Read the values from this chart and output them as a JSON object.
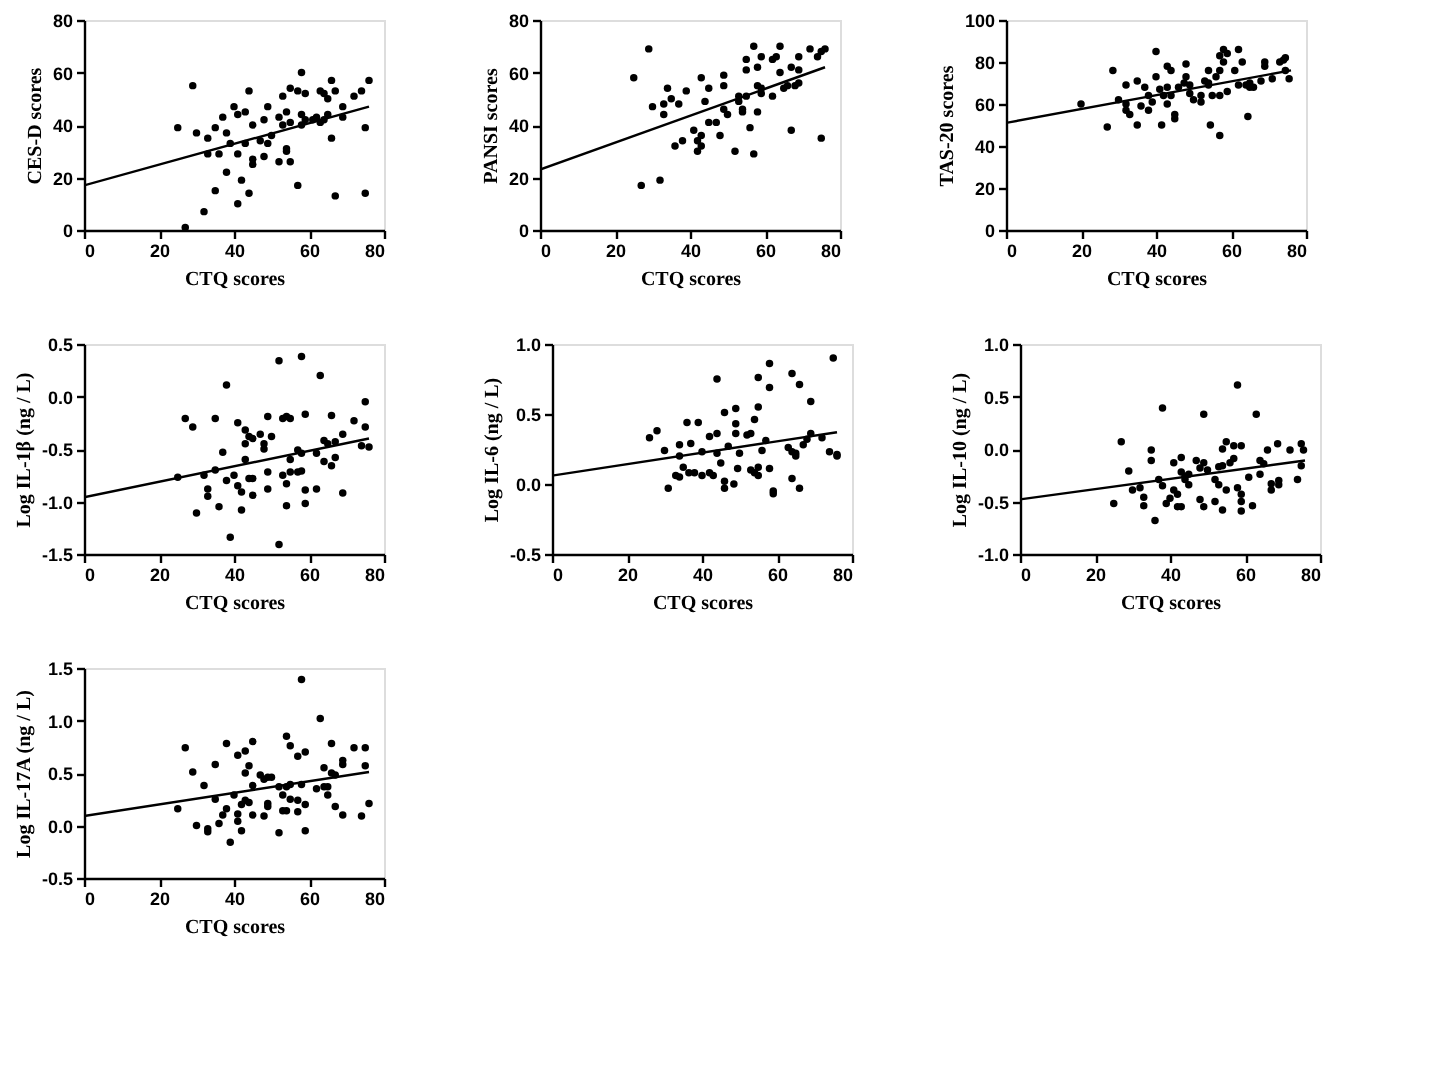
{
  "chart_data": [
    {
      "type": "scatter",
      "xlabel": "CTQ scores",
      "ylabel": "CES-D scores",
      "xlim": [
        0,
        80
      ],
      "xticks": [
        0,
        20,
        40,
        60,
        80
      ],
      "ylim": [
        0,
        80
      ],
      "yticks": [
        0,
        20,
        40,
        60,
        80
      ],
      "grid": false,
      "marker": "circle",
      "series": [
        {
          "color": "#000000",
          "x": [
            25,
            29,
            30,
            33,
            33,
            32,
            27,
            35,
            35,
            36,
            37,
            38,
            38,
            39,
            40,
            41,
            41,
            41,
            42,
            43,
            43,
            44,
            44,
            45,
            45,
            45,
            47,
            48,
            48,
            49,
            49,
            50,
            52,
            52,
            53,
            53,
            54,
            54,
            55,
            55,
            55,
            54,
            57,
            57,
            58,
            58,
            58,
            59,
            59,
            61,
            62,
            63,
            63,
            64,
            64,
            65,
            65,
            66,
            66,
            67,
            67,
            69,
            69,
            72,
            74,
            75,
            75,
            76
          ],
          "values": [
            39,
            55,
            37,
            35,
            29,
            7,
            1,
            39,
            15,
            29,
            43,
            37,
            22,
            33,
            47,
            44,
            29,
            10,
            19,
            45,
            33,
            53,
            14,
            40,
            27,
            25,
            34,
            42,
            28,
            33,
            47,
            36,
            26,
            43,
            51,
            40,
            45,
            31,
            54,
            41,
            26,
            30,
            53,
            17,
            60,
            44,
            40,
            52,
            42,
            42,
            43,
            41,
            53,
            52,
            42,
            50,
            44,
            57,
            35,
            53,
            13,
            47,
            43,
            51,
            53,
            39,
            14,
            57
          ]
        },
        {
          "type": "line",
          "marker": "none",
          "color": "#000000",
          "x": [
            0,
            76
          ],
          "values": [
            17,
            47
          ]
        }
      ]
    },
    {
      "type": "scatter",
      "xlabel": "CTQ scores",
      "ylabel": "PANSI scores",
      "xlim": [
        0,
        80
      ],
      "xticks": [
        0,
        20,
        40,
        60,
        80
      ],
      "ylim": [
        0,
        80
      ],
      "yticks": [
        0,
        20,
        40,
        60,
        80
      ],
      "grid": false,
      "marker": "circle",
      "series": [
        {
          "color": "#000000",
          "x": [
            25,
            27,
            29,
            30,
            32,
            33,
            33,
            34,
            35,
            37,
            39,
            36,
            38,
            41,
            42,
            42,
            43,
            43,
            43,
            44,
            45,
            45,
            47,
            48,
            49,
            49,
            49,
            50,
            52,
            53,
            53,
            54,
            55,
            55,
            55,
            54,
            56,
            57,
            57,
            58,
            58,
            59,
            59,
            59,
            58,
            62,
            62,
            63,
            64,
            64,
            65,
            66,
            67,
            67,
            68,
            69,
            69,
            69,
            72,
            74,
            75,
            75,
            76
          ],
          "values": [
            58,
            17,
            69,
            47,
            19,
            48,
            44,
            54,
            50,
            48,
            53,
            32,
            34,
            38,
            34,
            30,
            58,
            36,
            32,
            49,
            54,
            41,
            41,
            36,
            46,
            59,
            55,
            44,
            30,
            51,
            49,
            46,
            51,
            61,
            65,
            45,
            39,
            29,
            70,
            55,
            62,
            66,
            54,
            52,
            45,
            51,
            65,
            66,
            60,
            70,
            54,
            55,
            62,
            38,
            55,
            61,
            66,
            56,
            69,
            66,
            35,
            68,
            69
          ]
        },
        {
          "type": "line",
          "marker": "none",
          "color": "#000000",
          "x": [
            0,
            76
          ],
          "values": [
            23,
            62
          ]
        }
      ]
    },
    {
      "type": "scatter",
      "xlabel": "CTQ scores",
      "ylabel": "TAS-20 scores",
      "xlim": [
        0,
        80
      ],
      "xticks": [
        0,
        20,
        40,
        60,
        80
      ],
      "ylim": [
        0,
        100
      ],
      "yticks": [
        0,
        20,
        40,
        60,
        80,
        100
      ],
      "grid": false,
      "marker": "circle",
      "series": [
        {
          "color": "#000000",
          "x": [
            20,
            27,
            28.5,
            30,
            32,
            32,
            32,
            33,
            35,
            35,
            36,
            37,
            38,
            38,
            39,
            40,
            40,
            41,
            41.5,
            42,
            43,
            43,
            43,
            44,
            44,
            45,
            45,
            46,
            47.5,
            48,
            48,
            49,
            49,
            50,
            52,
            52,
            53,
            54,
            54,
            54,
            54.5,
            55,
            56,
            57,
            57,
            57,
            57,
            58,
            58,
            59,
            59,
            61,
            62,
            62,
            63,
            64,
            64.5,
            65,
            65,
            66,
            68,
            69,
            69,
            71,
            73,
            74,
            74.5,
            74.5,
            75.5
          ],
          "values": [
            60,
            49,
            76,
            62,
            57,
            69,
            60,
            55,
            50,
            71,
            59,
            68,
            57,
            64,
            61,
            85,
            73,
            67,
            50,
            64,
            78,
            60,
            68,
            76,
            64,
            55,
            53,
            68,
            70,
            73,
            79,
            65,
            69,
            62,
            64,
            61,
            71,
            76,
            69,
            70,
            50,
            64,
            73,
            45,
            64,
            76,
            83,
            86,
            80,
            84,
            66,
            76,
            69,
            86,
            80,
            69,
            54,
            70,
            68,
            68,
            71,
            80,
            78,
            72,
            80,
            81,
            82,
            76,
            72
          ]
        },
        {
          "type": "line",
          "marker": "none",
          "color": "#000000",
          "x": [
            0,
            76
          ],
          "values": [
            51,
            76
          ]
        }
      ]
    },
    {
      "type": "scatter",
      "xlabel": "CTQ scores",
      "ylabel": "Log IL-1β (ng / L)",
      "xlim": [
        0,
        80
      ],
      "xticks": [
        0,
        20,
        40,
        60,
        80
      ],
      "ylim": [
        -1.5,
        0.5
      ],
      "yticks": [
        {
          "value": -1.5,
          "label": "-1.5"
        },
        {
          "value": -1,
          "label": "-1.0"
        },
        {
          "value": -0.5,
          "label": "-0.5"
        },
        {
          "value": 0,
          "label": "0.0"
        },
        {
          "value": 0.5,
          "label": "0.5"
        }
      ],
      "grid": false,
      "marker": "circle",
      "series": [
        {
          "color": "#000000",
          "x": [
            25,
            27,
            29,
            30,
            32,
            33,
            33,
            35,
            35,
            36,
            37,
            38,
            38,
            39,
            40,
            41,
            41,
            42,
            42,
            43,
            43,
            43,
            44,
            44,
            45,
            45,
            45,
            47,
            48,
            48,
            49,
            49,
            49,
            50,
            52,
            52,
            53,
            53,
            54,
            54,
            54,
            55,
            55,
            55,
            57,
            57,
            58,
            58,
            58,
            59,
            59,
            59,
            62,
            62,
            63,
            64,
            64,
            65,
            66,
            66,
            67,
            67,
            69,
            69,
            72,
            74,
            75,
            75,
            76
          ],
          "values": [
            -0.77,
            -0.21,
            -0.29,
            -1.11,
            -0.75,
            -0.88,
            -0.95,
            -0.21,
            -0.7,
            -1.05,
            -0.53,
            0.11,
            -0.8,
            -1.34,
            -0.75,
            -0.25,
            -0.85,
            -0.91,
            -1.08,
            -0.32,
            -0.6,
            -0.45,
            -0.38,
            -0.78,
            -0.94,
            -0.78,
            -0.4,
            -0.36,
            -0.45,
            -0.5,
            -0.19,
            -0.72,
            -0.88,
            -0.38,
            0.34,
            -1.41,
            -0.21,
            -0.75,
            -0.19,
            -0.83,
            -1.04,
            -0.21,
            -0.6,
            -0.72,
            -0.51,
            -0.72,
            0.38,
            -0.54,
            -0.71,
            -0.17,
            -0.89,
            -1.02,
            -0.54,
            -0.88,
            0.2,
            -0.42,
            -0.62,
            -0.45,
            -0.18,
            -0.66,
            -0.43,
            -0.58,
            -0.36,
            -0.92,
            -0.23,
            -0.47,
            -0.05,
            -0.29,
            -0.48
          ]
        },
        {
          "type": "line",
          "marker": "none",
          "color": "#000000",
          "x": [
            0,
            76
          ],
          "values": [
            -0.96,
            -0.4
          ]
        }
      ]
    },
    {
      "type": "scatter",
      "xlabel": "CTQ scores",
      "ylabel": "Log IL-6 (ng / L)",
      "xlim": [
        0,
        80
      ],
      "xticks": [
        0,
        20,
        40,
        60,
        80
      ],
      "ylim": [
        -0.5,
        1
      ],
      "yticks": [
        {
          "value": -0.5,
          "label": "-0.5"
        },
        {
          "value": 0,
          "label": "0.0"
        },
        {
          "value": 0.5,
          "label": "0.5"
        },
        {
          "value": 1,
          "label": "1.0"
        }
      ],
      "grid": false,
      "marker": "circle",
      "series": [
        {
          "color": "#000000",
          "x": [
            26,
            28,
            30,
            31,
            33,
            34,
            34,
            34,
            35,
            36,
            36.5,
            37,
            38,
            39,
            40,
            40,
            42,
            42,
            43,
            44,
            44,
            44,
            45,
            46,
            46,
            46,
            47,
            48.5,
            49,
            49,
            49,
            49.5,
            50,
            52,
            53,
            53,
            54,
            54,
            55,
            55,
            55,
            55,
            56,
            57,
            58,
            58,
            58,
            59,
            59,
            63,
            64,
            64,
            64,
            65,
            65,
            66,
            66,
            67,
            68,
            69,
            69,
            72,
            74,
            75,
            76,
            76
          ],
          "values": [
            0.33,
            0.38,
            0.24,
            -0.03,
            0.06,
            0.2,
            0.28,
            0.05,
            0.12,
            0.44,
            0.08,
            0.29,
            0.08,
            0.44,
            0.23,
            0.06,
            0.34,
            0.08,
            0.06,
            0.75,
            0.36,
            0.22,
            0.15,
            0.51,
            0.02,
            -0.03,
            0.27,
            0.0,
            0.54,
            0.43,
            0.36,
            0.11,
            0.22,
            0.35,
            0.1,
            0.36,
            0.46,
            0.08,
            0.06,
            0.12,
            0.76,
            0.55,
            0.24,
            0.31,
            0.86,
            0.69,
            0.11,
            -0.05,
            -0.07,
            0.26,
            0.79,
            0.04,
            0.23,
            0.22,
            0.2,
            0.71,
            -0.03,
            0.28,
            0.32,
            0.59,
            0.36,
            0.33,
            0.23,
            0.9,
            0.21,
            0.2
          ]
        },
        {
          "type": "line",
          "marker": "none",
          "color": "#000000",
          "x": [
            0,
            76
          ],
          "values": [
            0.06,
            0.37
          ]
        }
      ]
    },
    {
      "type": "scatter",
      "xlabel": "CTQ scores",
      "ylabel": "Log IL-10 (ng / L)",
      "xlim": [
        0,
        80
      ],
      "xticks": [
        0,
        20,
        40,
        60,
        80
      ],
      "ylim": [
        -1,
        1
      ],
      "yticks": [
        {
          "value": -1,
          "label": "-1.0"
        },
        {
          "value": -0.5,
          "label": "-0.5"
        },
        {
          "value": 0,
          "label": "0.0"
        },
        {
          "value": 0.5,
          "label": "0.5"
        },
        {
          "value": 1,
          "label": "1.0"
        }
      ],
      "grid": false,
      "marker": "circle",
      "series": [
        {
          "color": "#000000",
          "x": [
            25,
            27,
            29,
            30,
            32,
            33,
            33,
            35,
            35,
            36,
            37,
            38,
            38,
            39,
            40,
            41,
            41,
            42,
            42,
            43,
            43,
            43,
            44,
            44,
            45,
            45,
            47,
            48,
            48,
            49,
            49,
            49,
            50,
            52,
            52,
            53,
            53,
            54,
            54,
            54,
            55,
            55,
            56,
            57,
            57,
            58,
            58,
            59,
            59,
            59,
            59,
            61,
            62,
            63,
            64,
            64,
            65,
            66,
            67,
            67,
            68.7,
            69,
            69,
            72,
            74,
            75,
            75,
            75.6
          ],
          "values": [
            -0.52,
            0.07,
            -0.21,
            -0.39,
            -0.37,
            -0.46,
            -0.54,
            -0.01,
            -0.11,
            -0.68,
            -0.29,
            0.39,
            -0.35,
            -0.52,
            -0.47,
            -0.13,
            -0.39,
            -0.55,
            -0.43,
            -0.08,
            -0.22,
            -0.55,
            -0.26,
            -0.29,
            -0.24,
            -0.34,
            -0.11,
            -0.18,
            -0.48,
            0.33,
            -0.13,
            -0.55,
            -0.2,
            -0.29,
            -0.5,
            -0.17,
            -0.34,
            -0.16,
            -0.58,
            0.0,
            0.07,
            -0.39,
            -0.13,
            0.03,
            -0.09,
            -0.37,
            0.61,
            0.03,
            -0.43,
            -0.5,
            -0.59,
            -0.27,
            -0.54,
            0.33,
            -0.24,
            -0.11,
            -0.14,
            -0.01,
            -0.39,
            -0.33,
            0.05,
            -0.3,
            -0.34,
            -0.01,
            -0.29,
            0.05,
            -0.16,
            -0.01
          ]
        },
        {
          "type": "line",
          "marker": "none",
          "color": "#000000",
          "x": [
            0,
            76
          ],
          "values": [
            -0.48,
            -0.11
          ]
        }
      ]
    },
    {
      "type": "scatter",
      "xlabel": "CTQ scores",
      "ylabel": "Log IL-17A (ng / L)",
      "xlim": [
        0,
        80
      ],
      "xticks": [
        0,
        20,
        40,
        60,
        80
      ],
      "ylim": [
        -0.5,
        1.5
      ],
      "yticks": [
        {
          "value": -0.5,
          "label": "-0.5"
        },
        {
          "value": 0,
          "label": "0.0"
        },
        {
          "value": 0.5,
          "label": "0.5"
        },
        {
          "value": 1,
          "label": "1.0"
        },
        {
          "value": 1.5,
          "label": "1.5"
        }
      ],
      "grid": false,
      "marker": "circle",
      "series": [
        {
          "color": "#000000",
          "x": [
            25,
            27,
            29,
            30,
            32,
            33,
            33,
            35,
            35,
            36,
            37,
            38,
            38,
            39,
            40,
            41,
            41,
            41,
            42,
            42,
            43,
            43,
            43,
            44,
            44,
            45,
            45,
            45,
            47,
            48,
            48,
            49,
            49,
            49,
            50,
            52,
            52,
            53,
            53,
            54,
            54,
            54,
            55,
            55,
            55,
            57,
            57,
            57,
            58,
            58,
            59,
            59,
            59,
            62,
            63,
            64,
            64,
            65,
            65,
            66,
            66,
            67,
            67,
            69,
            69,
            69,
            72,
            74,
            75,
            75,
            76
          ],
          "values": [
            0.16,
            0.74,
            0.51,
            0.0,
            0.38,
            -0.03,
            -0.06,
            0.58,
            0.25,
            0.02,
            0.1,
            0.78,
            0.16,
            -0.16,
            0.29,
            0.67,
            0.11,
            0.04,
            -0.05,
            0.2,
            0.71,
            0.5,
            0.24,
            0.57,
            0.22,
            0.8,
            0.38,
            0.1,
            0.48,
            0.09,
            0.44,
            0.46,
            0.21,
            0.18,
            0.46,
            -0.07,
            0.37,
            0.29,
            0.14,
            0.85,
            0.37,
            0.14,
            0.76,
            0.39,
            0.25,
            0.13,
            0.66,
            0.24,
            1.39,
            0.39,
            0.7,
            0.2,
            -0.05,
            0.35,
            1.02,
            0.55,
            0.37,
            0.29,
            0.37,
            0.78,
            0.5,
            0.48,
            0.18,
            0.62,
            0.58,
            0.1,
            0.74,
            0.09,
            0.74,
            0.57,
            0.21
          ]
        },
        {
          "type": "line",
          "marker": "none",
          "color": "#000000",
          "x": [
            0,
            76
          ],
          "values": [
            0.09,
            0.51
          ]
        }
      ]
    }
  ]
}
